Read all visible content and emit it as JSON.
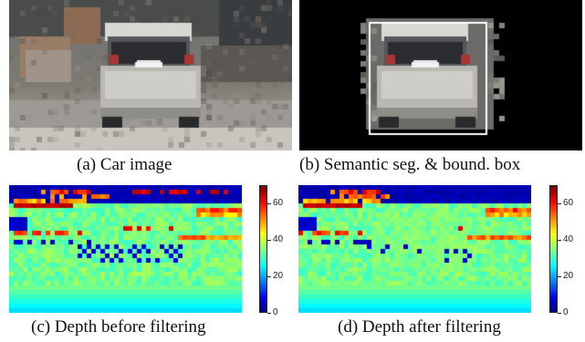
{
  "captions": {
    "a": "(a) Car image",
    "b": "(b) Semantic seg. & bound. box",
    "c": "(c) Depth before filtering",
    "d": "(d) Depth after filtering"
  },
  "colorbar": {
    "ticks": [
      "0",
      "20",
      "40",
      "60"
    ],
    "range": [
      0,
      70
    ],
    "colormap": "jet"
  },
  "colors": {
    "background": "#ffffff",
    "seg_background": "#000000",
    "bbox": "#ffffff"
  }
}
